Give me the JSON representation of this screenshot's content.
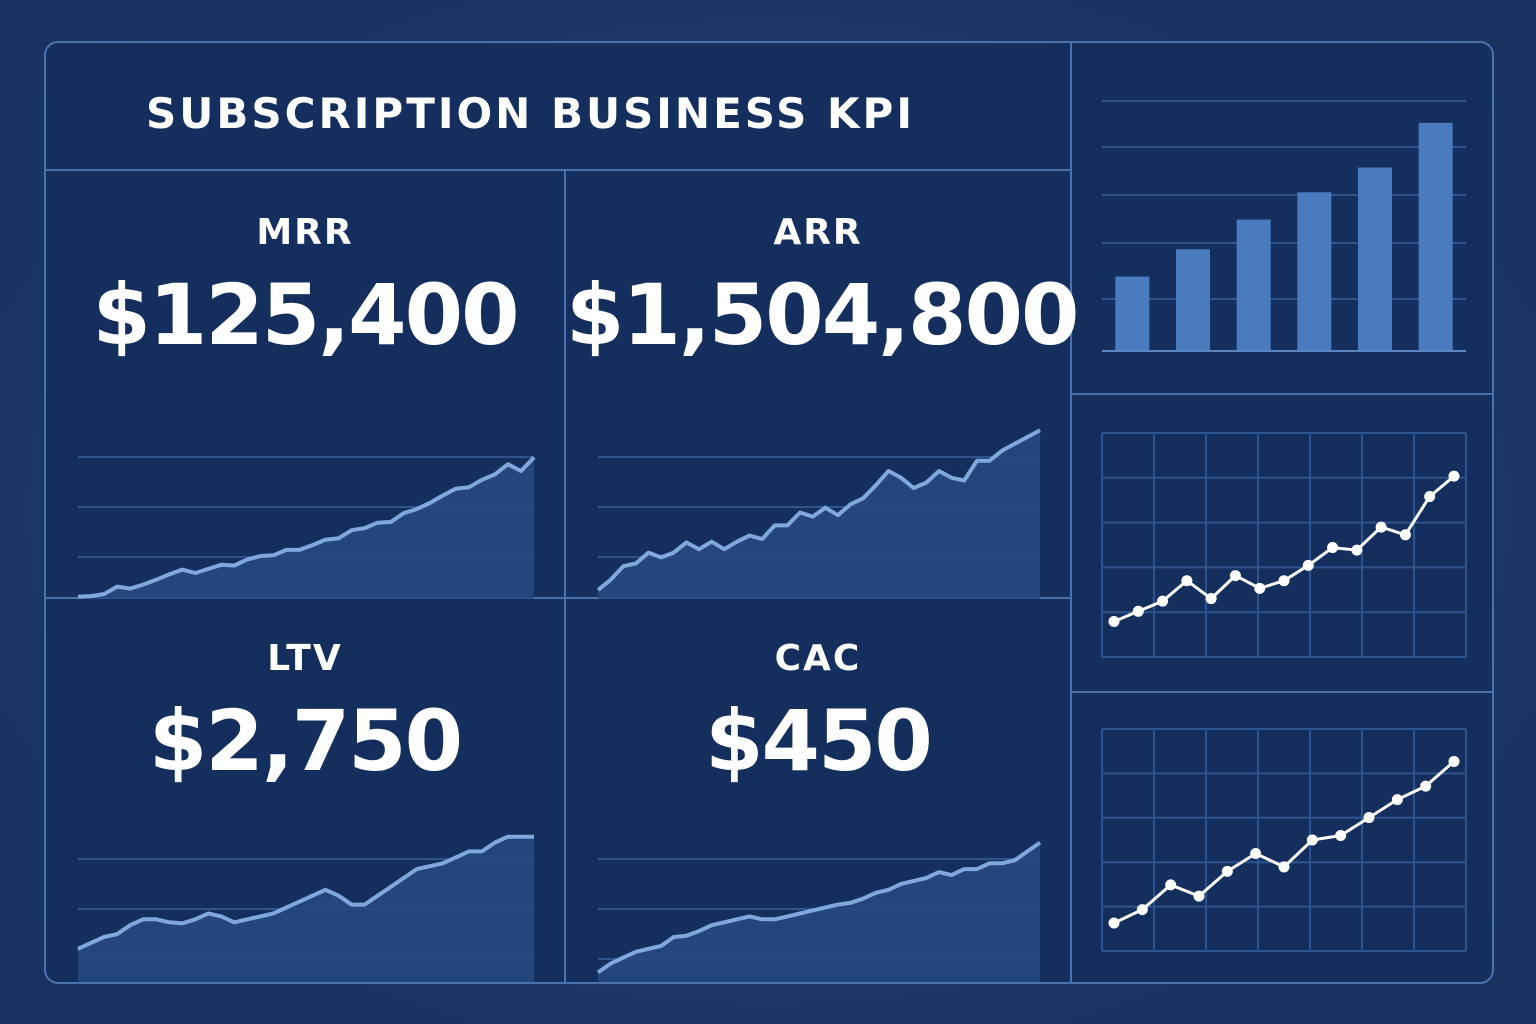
{
  "dashboard": {
    "title": "SUBSCRIPTION BUSINESS KPI"
  },
  "colors": {
    "background": "#142f5e",
    "border": "#4a72ad",
    "area_fill": "#26497f",
    "line": "#7fa8dc",
    "bar": "#4a7bbf",
    "marker": "#ffffff",
    "text": "#ffffff"
  },
  "kpis": [
    {
      "label": "MRR",
      "value": "$125,400"
    },
    {
      "label": "ARR",
      "value": "$1,504,800"
    },
    {
      "label": "LTV",
      "value": "$2,750"
    },
    {
      "label": "CAC",
      "value": "$450"
    }
  ],
  "chart_data": [
    {
      "type": "area",
      "x": [
        0,
        1,
        2,
        3,
        4,
        5,
        6,
        7,
        8,
        9,
        10,
        11,
        12,
        13,
        14,
        15,
        16,
        17,
        18,
        19,
        20,
        21,
        22,
        23,
        24,
        25,
        26,
        27,
        28,
        29,
        30,
        31,
        32,
        33,
        34,
        35
      ],
      "values": [
        3,
        3.2,
        3.8,
        6,
        5.4,
        6.6,
        8,
        9.6,
        11,
        10,
        11.2,
        12.4,
        12.2,
        14,
        15,
        15.2,
        16.8,
        16.8,
        18.2,
        19.8,
        20.2,
        22.6,
        23.2,
        24.8,
        25,
        27.6,
        28.8,
        30.6,
        32.8,
        34.8,
        35.2,
        37.4,
        39,
        42,
        40,
        44
      ],
      "ylim": [
        0,
        60
      ],
      "grid": true
    },
    {
      "type": "area",
      "x": [
        0,
        1,
        2,
        3,
        4,
        5,
        6,
        7,
        8,
        9,
        10,
        11,
        12,
        13,
        14,
        15,
        16,
        17,
        18,
        19,
        20,
        21,
        22,
        23,
        24,
        25,
        26,
        27,
        28,
        29,
        30,
        31,
        32,
        33,
        34,
        35
      ],
      "values": [
        5,
        8,
        12,
        12.8,
        16,
        14.6,
        16,
        19,
        17,
        19.2,
        17,
        19.2,
        21,
        20,
        24,
        24,
        27.8,
        26.6,
        29.2,
        27,
        30.2,
        32,
        35.8,
        40,
        38,
        35,
        36.6,
        40,
        38,
        37.2,
        43,
        43,
        46,
        48,
        50,
        52
      ],
      "ylim": [
        0,
        60
      ],
      "grid": true
    },
    {
      "type": "area",
      "x": [
        0,
        1,
        2,
        3,
        4,
        5,
        6,
        7,
        8,
        9,
        10,
        11,
        12,
        13,
        14,
        15,
        16,
        17,
        18,
        19,
        20,
        21,
        22,
        23,
        24,
        25,
        26,
        27,
        28,
        29,
        30,
        31,
        32,
        33,
        34,
        35
      ],
      "values": [
        16,
        18,
        20,
        21,
        24,
        26,
        26,
        25,
        24.6,
        26,
        28,
        27,
        25,
        26,
        27,
        28,
        30,
        32,
        34,
        36,
        34,
        31,
        31,
        34,
        37,
        40,
        43,
        44,
        45,
        47,
        49,
        49,
        52,
        54,
        54,
        54
      ],
      "ylim": [
        0,
        60
      ],
      "grid": true
    },
    {
      "type": "area",
      "x": [
        0,
        1,
        2,
        3,
        4,
        5,
        6,
        7,
        8,
        9,
        10,
        11,
        12,
        13,
        14,
        15,
        16,
        17,
        18,
        19,
        20,
        21,
        22,
        23,
        24,
        25,
        26,
        27,
        28,
        29,
        30,
        31,
        32,
        33,
        34,
        35
      ],
      "values": [
        8,
        11,
        13,
        15,
        16,
        17,
        20,
        20.4,
        22,
        24,
        25,
        26,
        27,
        26,
        26,
        27,
        28,
        29,
        30,
        31,
        31.6,
        33,
        35,
        36,
        38,
        39,
        40,
        42,
        41,
        43,
        43,
        45,
        45,
        46,
        49,
        52
      ],
      "ylim": [
        0,
        60
      ],
      "grid": true
    },
    {
      "type": "bar",
      "categories": [
        "1",
        "2",
        "3",
        "4",
        "5",
        "6"
      ],
      "values": [
        30,
        41,
        53,
        64,
        74,
        92
      ],
      "ylim": [
        0,
        100
      ],
      "grid": true
    },
    {
      "type": "line",
      "x": [
        0,
        1,
        2,
        3,
        4,
        5,
        6,
        7,
        8,
        9,
        10,
        11,
        12,
        13,
        14
      ],
      "values": [
        10,
        14,
        18,
        26,
        19,
        28,
        23,
        26,
        32,
        39,
        38,
        47,
        44,
        59,
        67
      ],
      "ylim": [
        0,
        80
      ],
      "grid": true
    },
    {
      "type": "line",
      "x": [
        0,
        1,
        2,
        3,
        4,
        5,
        6,
        7,
        8,
        9,
        10,
        11,
        12
      ],
      "values": [
        8,
        14,
        25,
        20,
        31,
        39,
        33,
        45,
        47,
        55,
        63,
        69,
        80
      ],
      "ylim": [
        0,
        90
      ],
      "grid": true
    }
  ]
}
